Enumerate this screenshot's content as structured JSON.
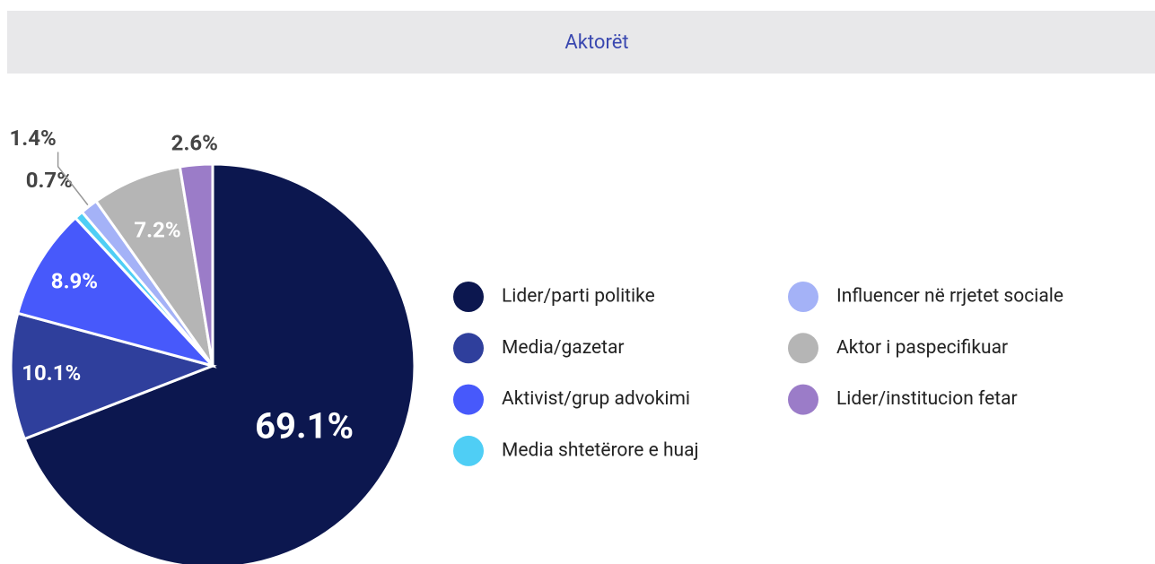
{
  "chart_data": {
    "type": "pie",
    "title": "Aktorët",
    "categories": [
      "Lider/parti politike",
      "Media/gazetar",
      "Aktivist/grup advokimi",
      "Media shtetërore e huaj",
      "Influencer në rrjetet sociale",
      "Aktor i paspecifikuar",
      "Lider/institucion fetar"
    ],
    "values": [
      69.1,
      10.1,
      8.9,
      0.7,
      1.4,
      7.2,
      2.6
    ],
    "value_labels": [
      "69.1%",
      "10.1%",
      "8.9%",
      "0.7%",
      "1.4%",
      "7.2%",
      "2.6%"
    ],
    "colors": [
      "#0c174f",
      "#2f3f9c",
      "#4759fb",
      "#4fcef5",
      "#a4b2f7",
      "#b5b5b5",
      "#9b7cc8"
    ],
    "legend": "right"
  }
}
